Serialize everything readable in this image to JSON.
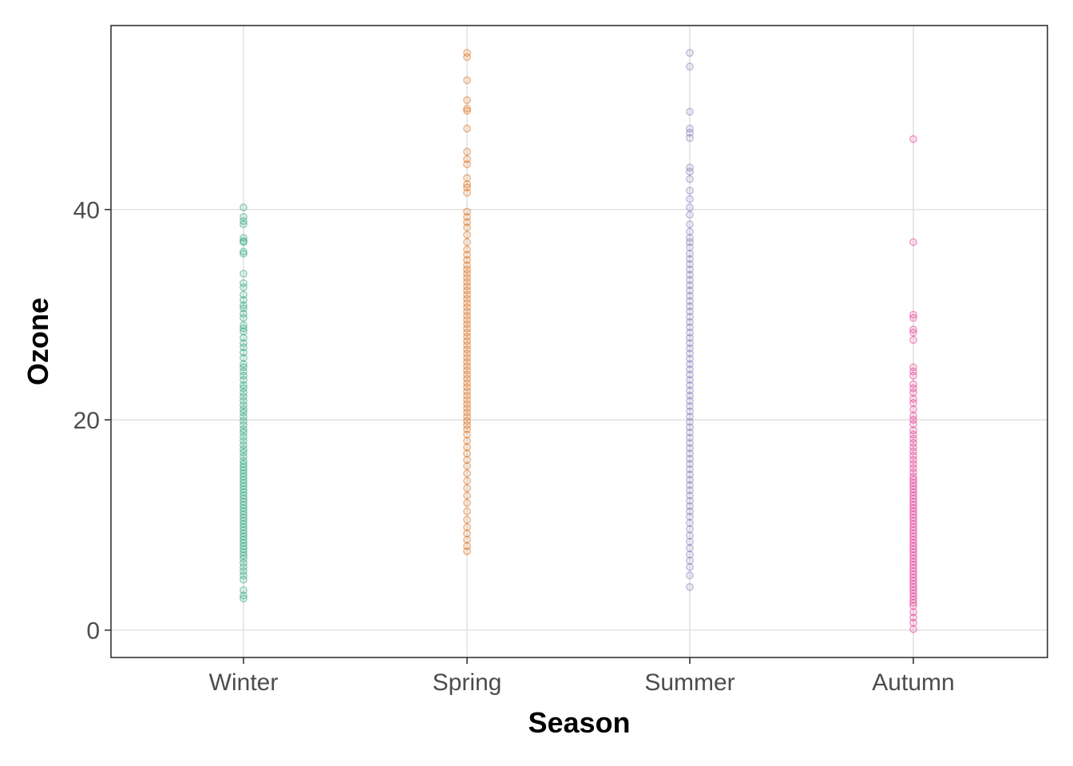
{
  "chart_data": {
    "type": "scatter",
    "xlabel": "Season",
    "ylabel": "Ozone",
    "categories": [
      "Winter",
      "Spring",
      "Summer",
      "Autumn"
    ],
    "yticks": [
      0,
      20,
      40
    ],
    "ylim": [
      -2.6,
      57.5
    ],
    "grid": true,
    "legend": "none",
    "colors": {
      "Winter": "#1b9e77",
      "Spring": "#d95f02",
      "Summer": "#7570b3",
      "Autumn": "#e7298a"
    },
    "series": [
      {
        "category": "Winter",
        "values": [
          40.2,
          39.3,
          38.9,
          38.6,
          37.3,
          37.0,
          36.9,
          36.0,
          35.8,
          33.9,
          33.0,
          32.6,
          31.9,
          31.4,
          30.9,
          30.6,
          30.1,
          29.7,
          29.0,
          28.7,
          28.4,
          27.8,
          27.3,
          26.9,
          26.4,
          25.9,
          25.3,
          25.0,
          24.6,
          24.2,
          23.8,
          23.3,
          23.0,
          22.6,
          22.2,
          21.8,
          21.4,
          21.0,
          20.7,
          20.3,
          19.9,
          19.5,
          19.1,
          18.8,
          18.4,
          18.0,
          17.6,
          17.2,
          16.9,
          16.5,
          16.1,
          15.8,
          15.5,
          15.2,
          14.9,
          14.6,
          14.3,
          14.0,
          13.7,
          13.4,
          13.1,
          12.8,
          12.5,
          12.2,
          11.9,
          11.6,
          11.3,
          11.0,
          10.7,
          10.4,
          10.1,
          9.8,
          9.5,
          9.2,
          8.9,
          8.6,
          8.3,
          8.0,
          7.7,
          7.4,
          7.1,
          6.8,
          6.4,
          6.0,
          5.6,
          5.2,
          4.8,
          3.8,
          3.3,
          3.0
        ]
      },
      {
        "category": "Spring",
        "values": [
          54.9,
          54.5,
          52.3,
          50.4,
          49.6,
          49.4,
          47.7,
          45.5,
          44.8,
          44.3,
          43.0,
          42.4,
          42.1,
          41.6,
          39.8,
          39.3,
          38.8,
          38.3,
          37.6,
          36.9,
          36.2,
          35.7,
          35.2,
          34.7,
          34.3,
          33.9,
          33.5,
          33.1,
          32.7,
          32.3,
          31.9,
          31.5,
          31.1,
          30.7,
          30.3,
          29.9,
          29.5,
          29.1,
          28.7,
          28.3,
          27.9,
          27.5,
          27.1,
          26.7,
          26.3,
          25.9,
          25.5,
          25.1,
          24.7,
          24.3,
          23.9,
          23.5,
          23.1,
          22.7,
          22.3,
          21.9,
          21.5,
          21.1,
          20.7,
          20.3,
          19.9,
          19.5,
          19.1,
          18.6,
          18.0,
          17.4,
          16.8,
          16.2,
          15.6,
          14.9,
          14.2,
          13.5,
          12.8,
          12.1,
          11.3,
          10.5,
          9.8,
          9.2,
          8.6,
          8.0,
          7.5
        ]
      },
      {
        "category": "Summer",
        "values": [
          54.9,
          53.6,
          49.3,
          47.7,
          47.3,
          46.8,
          44.0,
          43.6,
          42.9,
          41.8,
          41.0,
          40.2,
          39.5,
          38.6,
          37.9,
          37.3,
          36.9,
          36.4,
          35.8,
          35.3,
          34.8,
          34.3,
          33.8,
          33.3,
          32.8,
          32.3,
          31.8,
          31.3,
          30.8,
          30.3,
          29.8,
          29.3,
          28.8,
          28.3,
          27.8,
          27.3,
          26.8,
          26.3,
          25.8,
          25.3,
          24.8,
          24.3,
          23.8,
          23.3,
          22.8,
          22.3,
          21.8,
          21.3,
          20.8,
          20.3,
          19.8,
          19.3,
          18.8,
          18.3,
          17.8,
          17.3,
          16.8,
          16.3,
          15.8,
          15.3,
          14.8,
          14.3,
          13.8,
          13.3,
          12.8,
          12.3,
          11.8,
          11.3,
          10.8,
          10.2,
          9.6,
          9.0,
          8.4,
          7.8,
          7.2,
          6.6,
          6.0,
          5.2,
          4.1
        ]
      },
      {
        "category": "Autumn",
        "values": [
          46.7,
          36.9,
          30.0,
          29.7,
          28.6,
          28.3,
          27.6,
          25.0,
          24.6,
          24.2,
          23.4,
          23.0,
          22.6,
          22.0,
          21.6,
          21.0,
          20.4,
          20.0,
          19.6,
          19.0,
          18.6,
          18.2,
          17.8,
          17.4,
          17.0,
          16.6,
          16.2,
          15.8,
          15.4,
          15.0,
          14.6,
          14.3,
          14.0,
          13.7,
          13.4,
          13.1,
          12.8,
          12.5,
          12.2,
          11.9,
          11.6,
          11.3,
          11.0,
          10.7,
          10.4,
          10.1,
          9.8,
          9.5,
          9.2,
          8.9,
          8.6,
          8.3,
          8.0,
          7.7,
          7.4,
          7.1,
          6.8,
          6.5,
          6.2,
          5.9,
          5.6,
          5.3,
          5.0,
          4.7,
          4.4,
          4.1,
          3.8,
          3.5,
          3.2,
          2.9,
          2.6,
          2.3,
          1.7,
          1.2,
          0.7,
          0.1
        ]
      }
    ]
  }
}
